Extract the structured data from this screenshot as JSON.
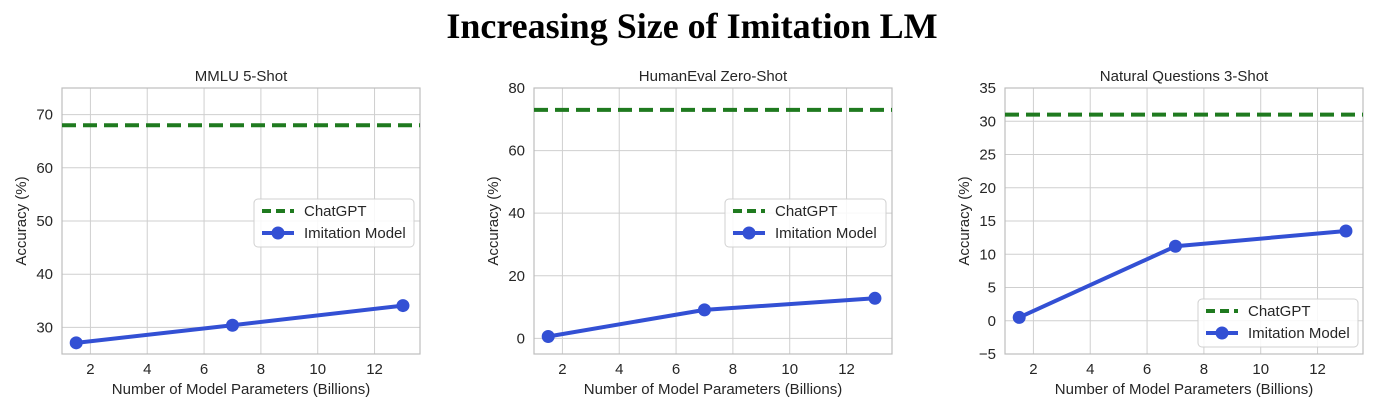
{
  "figure": {
    "title": "Increasing Size of Imitation LM"
  },
  "colors": {
    "chatgpt": "#1f7a1f",
    "imitation": "#3350d4",
    "grid": "#cfcfcf",
    "spine": "#bdbdbd"
  },
  "chart_data": [
    {
      "type": "line",
      "title": "MMLU 5-Shot",
      "xlabel": "Number of Model Parameters (Billions)",
      "ylabel": "Accuracy (%)",
      "xlim": [
        1.0,
        13.6
      ],
      "ylim": [
        25,
        75
      ],
      "xticks": [
        2,
        4,
        6,
        8,
        10,
        12
      ],
      "yticks": [
        30,
        40,
        50,
        60,
        70
      ],
      "grid": true,
      "legend_position": "center-right",
      "series": [
        {
          "name": "ChatGPT",
          "style": "dashed",
          "x": [
            1.0,
            13.6
          ],
          "values": [
            68,
            68
          ]
        },
        {
          "name": "Imitation Model",
          "style": "solid-marker",
          "x": [
            1.5,
            7,
            13
          ],
          "values": [
            27.1,
            30.4,
            34.1
          ]
        }
      ]
    },
    {
      "type": "line",
      "title": "HumanEval Zero-Shot",
      "xlabel": "Number of Model Parameters (Billions)",
      "ylabel": "Accuracy (%)",
      "xlim": [
        1.0,
        13.6
      ],
      "ylim": [
        -5,
        80
      ],
      "xticks": [
        2,
        4,
        6,
        8,
        10,
        12
      ],
      "yticks": [
        0,
        20,
        40,
        60,
        80
      ],
      "grid": true,
      "legend_position": "center-right",
      "series": [
        {
          "name": "ChatGPT",
          "style": "dashed",
          "x": [
            1.0,
            13.6
          ],
          "values": [
            73,
            73
          ]
        },
        {
          "name": "Imitation Model",
          "style": "solid-marker",
          "x": [
            1.5,
            7,
            13
          ],
          "values": [
            0.6,
            9.1,
            12.8
          ]
        }
      ]
    },
    {
      "type": "line",
      "title": "Natural Questions 3-Shot",
      "xlabel": "Number of Model Parameters (Billions)",
      "ylabel": "Accuracy (%)",
      "xlim": [
        1.0,
        13.6
      ],
      "ylim": [
        -5,
        35
      ],
      "xticks": [
        2,
        4,
        6,
        8,
        10,
        12
      ],
      "yticks": [
        -5,
        0,
        5,
        10,
        15,
        20,
        25,
        30,
        35
      ],
      "grid": true,
      "legend_position": "bottom-right",
      "series": [
        {
          "name": "ChatGPT",
          "style": "dashed",
          "x": [
            1.0,
            13.6
          ],
          "values": [
            31,
            31
          ]
        },
        {
          "name": "Imitation Model",
          "style": "solid-marker",
          "x": [
            1.5,
            7,
            13
          ],
          "values": [
            0.5,
            11.2,
            13.5
          ]
        }
      ]
    }
  ]
}
